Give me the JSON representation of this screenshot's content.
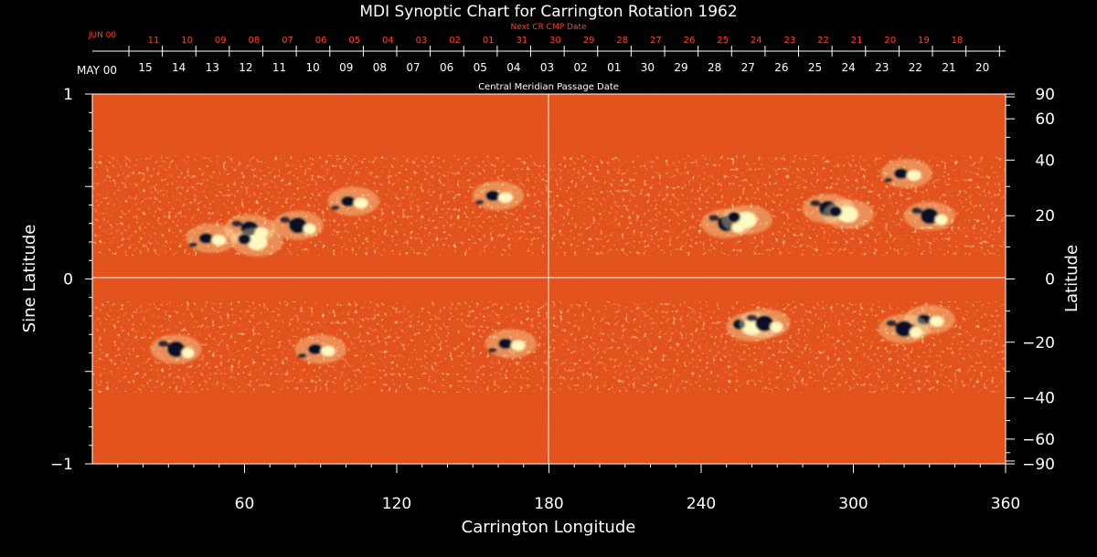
{
  "chart_data": {
    "type": "heatmap",
    "title": "MDI Synoptic Chart for Carrington Rotation 1962",
    "xlabel": "Carrington Longitude",
    "ylabel_left": "Sine Latitude",
    "ylabel_right": "Latitude",
    "xlim": [
      0,
      360
    ],
    "ylim": [
      -1,
      1
    ],
    "x_ticks": [
      60,
      120,
      180,
      240,
      300,
      360
    ],
    "y_ticks_left": [
      {
        "v": 1,
        "label": "1"
      },
      {
        "v": 0,
        "label": "0"
      },
      {
        "v": -1,
        "label": "−1"
      }
    ],
    "right_axis_deg_labels": [
      {
        "deg": 90,
        "label": "90"
      },
      {
        "deg": 60,
        "label": "60"
      },
      {
        "deg": 40,
        "label": "40"
      },
      {
        "deg": 20,
        "label": "20"
      },
      {
        "deg": 0,
        "label": "0"
      },
      {
        "deg": -20,
        "label": "−20"
      },
      {
        "deg": -40,
        "label": "−40"
      },
      {
        "deg": -60,
        "label": "−60"
      },
      {
        "deg": -90,
        "label": "−90"
      }
    ],
    "cmp_axis": {
      "title": "Central Meridian Passage Date",
      "month_label": "MAY 00",
      "labels": [
        "15",
        "14",
        "13",
        "12",
        "11",
        "10",
        "09",
        "08",
        "07",
        "06",
        "05",
        "04",
        "03",
        "02",
        "01",
        "30",
        "29",
        "28",
        "27",
        "26",
        "25",
        "24",
        "23",
        "22",
        "21",
        "20"
      ]
    },
    "next_cr_axis": {
      "title": "Next CR CMP Date",
      "month_label": "JUN 00",
      "labels": [
        "11",
        "10",
        "09",
        "08",
        "07",
        "06",
        "05",
        "04",
        "03",
        "02",
        "01",
        "31",
        "30",
        "29",
        "28",
        "27",
        "26",
        "25",
        "24",
        "23",
        "22",
        "21",
        "20",
        "19",
        "18"
      ]
    },
    "colors": {
      "background": "#000000",
      "field_base": "#e8501c",
      "positive_polarity": "#fff8c0",
      "negative_polarity": "#100828",
      "axis": "#ffffff",
      "next_cr_text": "#ff4020"
    },
    "active_regions": [
      {
        "lon": 47,
        "lat": 0.22,
        "polarity": "mixed"
      },
      {
        "lon": 62,
        "lat": 0.27,
        "polarity": "negative"
      },
      {
        "lon": 65,
        "lat": 0.2,
        "polarity": "positive"
      },
      {
        "lon": 81,
        "lat": 0.29,
        "polarity": "negative"
      },
      {
        "lon": 103,
        "lat": 0.42,
        "polarity": "mixed"
      },
      {
        "lon": 90,
        "lat": -0.38,
        "polarity": "mixed"
      },
      {
        "lon": 33,
        "lat": -0.38,
        "polarity": "negative"
      },
      {
        "lon": 160,
        "lat": 0.45,
        "polarity": "mixed"
      },
      {
        "lon": 165,
        "lat": -0.35,
        "polarity": "mixed"
      },
      {
        "lon": 250,
        "lat": 0.3,
        "polarity": "negative"
      },
      {
        "lon": 258,
        "lat": 0.32,
        "polarity": "positive"
      },
      {
        "lon": 260,
        "lat": -0.26,
        "polarity": "positive"
      },
      {
        "lon": 265,
        "lat": -0.24,
        "polarity": "negative"
      },
      {
        "lon": 290,
        "lat": 0.38,
        "polarity": "negative"
      },
      {
        "lon": 298,
        "lat": 0.35,
        "polarity": "positive"
      },
      {
        "lon": 321,
        "lat": 0.57,
        "polarity": "mixed"
      },
      {
        "lon": 330,
        "lat": 0.34,
        "polarity": "negative"
      },
      {
        "lon": 330,
        "lat": -0.22,
        "polarity": "mixed"
      },
      {
        "lon": 320,
        "lat": -0.27,
        "polarity": "negative"
      }
    ]
  }
}
